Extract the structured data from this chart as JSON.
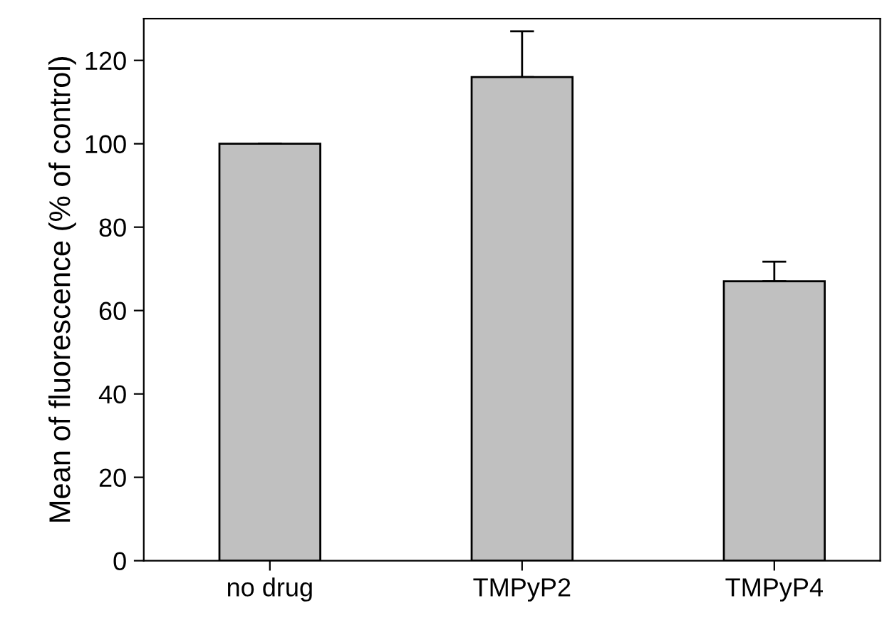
{
  "chart_data": {
    "type": "bar",
    "ylabel": "Mean of fluorescence (% of control)",
    "categories": [
      "no drug",
      "TMPyP2",
      "TMPyP4"
    ],
    "values": [
      100,
      116,
      67
    ],
    "errors": [
      [
        100,
        100
      ],
      [
        116,
        127
      ],
      [
        67,
        71.7
      ]
    ],
    "color": "#c0c0c0",
    "ylim": [
      0,
      130
    ],
    "yticks": [
      0,
      20,
      40,
      60,
      80,
      100,
      120
    ],
    "grid": false
  }
}
